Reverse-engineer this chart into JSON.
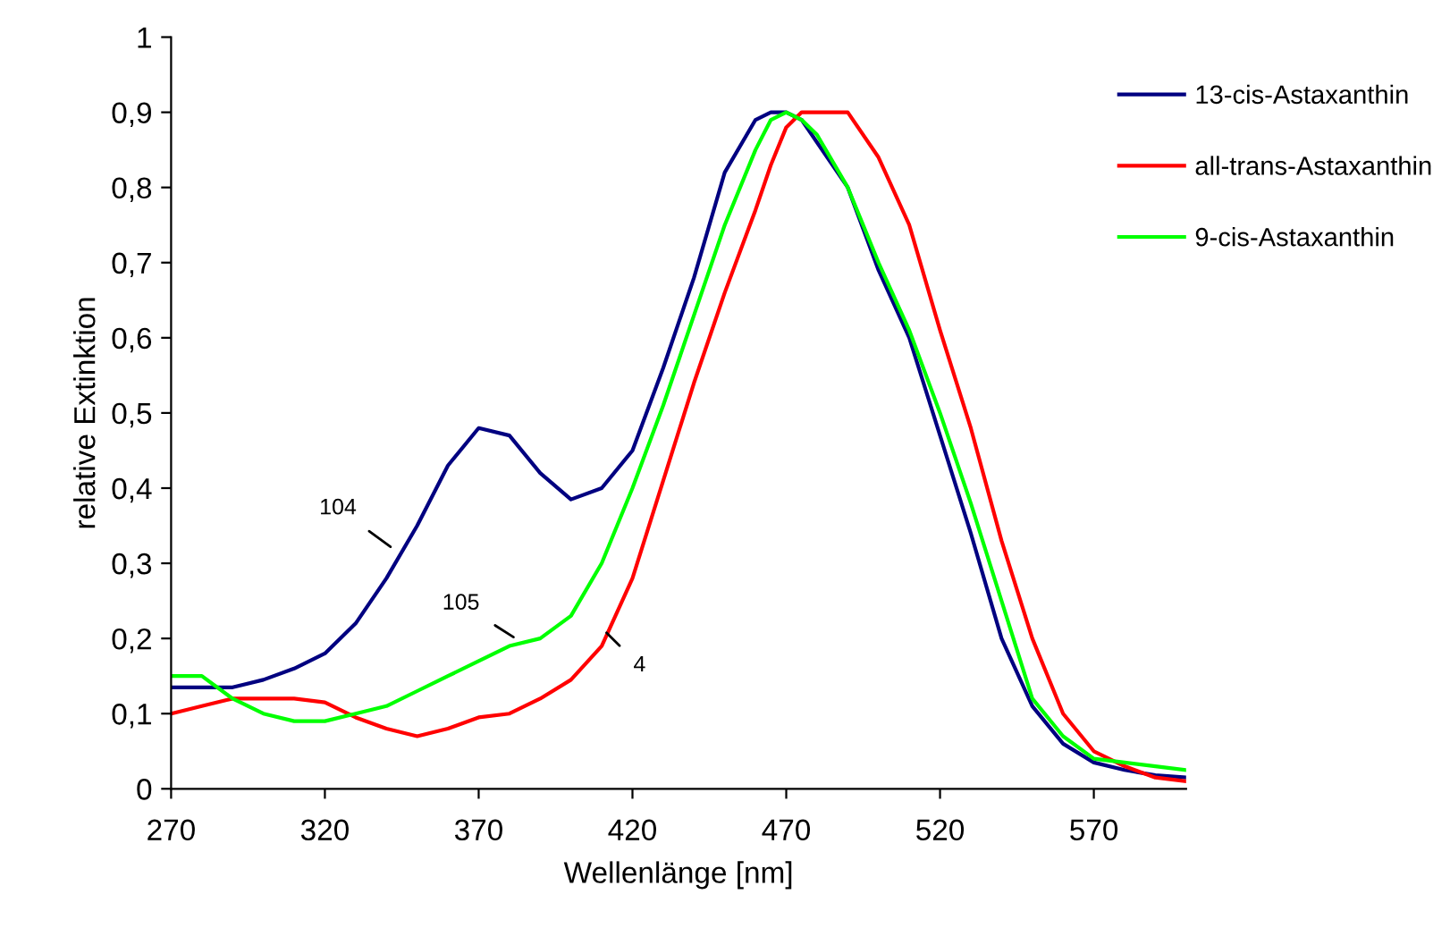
{
  "chart_data": {
    "type": "line",
    "xlabel": "Wellenlänge [nm]",
    "ylabel": "relative Extinktion",
    "xlim": [
      270,
      600
    ],
    "xticks": [
      270,
      320,
      370,
      420,
      470,
      520,
      570
    ],
    "ylim": [
      0,
      1
    ],
    "yticks": [
      0,
      {
        "value": 0.1,
        "label": "0,1"
      },
      {
        "value": 0.2,
        "label": "0,2"
      },
      {
        "value": 0.3,
        "label": "0,3"
      },
      {
        "value": 0.4,
        "label": "0,4"
      },
      {
        "value": 0.5,
        "label": "0,5"
      },
      {
        "value": 0.6,
        "label": "0,6"
      },
      {
        "value": 0.7,
        "label": "0,7"
      },
      {
        "value": 0.8,
        "label": "0,8"
      },
      {
        "value": 0.9,
        "label": "0,9"
      },
      1
    ],
    "grid": false,
    "legend": "right",
    "marker": "none",
    "line_style": "solid",
    "x": [
      270,
      280,
      290,
      300,
      310,
      320,
      330,
      340,
      350,
      360,
      370,
      380,
      390,
      400,
      410,
      420,
      430,
      440,
      450,
      460,
      465,
      470,
      475,
      480,
      490,
      500,
      510,
      520,
      530,
      540,
      550,
      560,
      570,
      580,
      590,
      600
    ],
    "series": [
      {
        "name": "13-cis-Astaxanthin",
        "color": "#000080",
        "values": [
          0.135,
          0.135,
          0.135,
          0.145,
          0.16,
          0.18,
          0.22,
          0.28,
          0.35,
          0.43,
          0.48,
          0.47,
          0.42,
          0.385,
          0.4,
          0.45,
          0.56,
          0.68,
          0.82,
          0.89,
          0.9,
          0.9,
          0.89,
          0.86,
          0.8,
          0.69,
          0.6,
          0.47,
          0.34,
          0.2,
          0.11,
          0.06,
          0.035,
          0.025,
          0.018,
          0.015
        ]
      },
      {
        "name": "all-trans-Astaxanthin",
        "color": "#ff0000",
        "values": [
          0.1,
          0.11,
          0.12,
          0.12,
          0.12,
          0.115,
          0.095,
          0.08,
          0.07,
          0.08,
          0.095,
          0.1,
          0.12,
          0.145,
          0.19,
          0.28,
          0.41,
          0.54,
          0.66,
          0.77,
          0.83,
          0.88,
          0.9,
          0.9,
          0.9,
          0.84,
          0.75,
          0.61,
          0.48,
          0.33,
          0.2,
          0.1,
          0.05,
          0.03,
          0.015,
          0.01
        ]
      },
      {
        "name": "9-cis-Astaxanthin",
        "color": "#00ff00",
        "values": [
          0.15,
          0.15,
          0.12,
          0.1,
          0.09,
          0.09,
          0.1,
          0.11,
          0.13,
          0.15,
          0.17,
          0.19,
          0.2,
          0.23,
          0.3,
          0.4,
          0.51,
          0.63,
          0.75,
          0.85,
          0.89,
          0.9,
          0.89,
          0.87,
          0.8,
          0.7,
          0.61,
          0.5,
          0.38,
          0.25,
          0.12,
          0.07,
          0.04,
          0.035,
          0.03,
          0.025
        ]
      }
    ],
    "annotations": [
      {
        "text": "104",
        "x": 342,
        "y": 0.32
      },
      {
        "text": "105",
        "x": 382,
        "y": 0.2
      },
      {
        "text": "4",
        "x": 411,
        "y": 0.21
      }
    ]
  }
}
